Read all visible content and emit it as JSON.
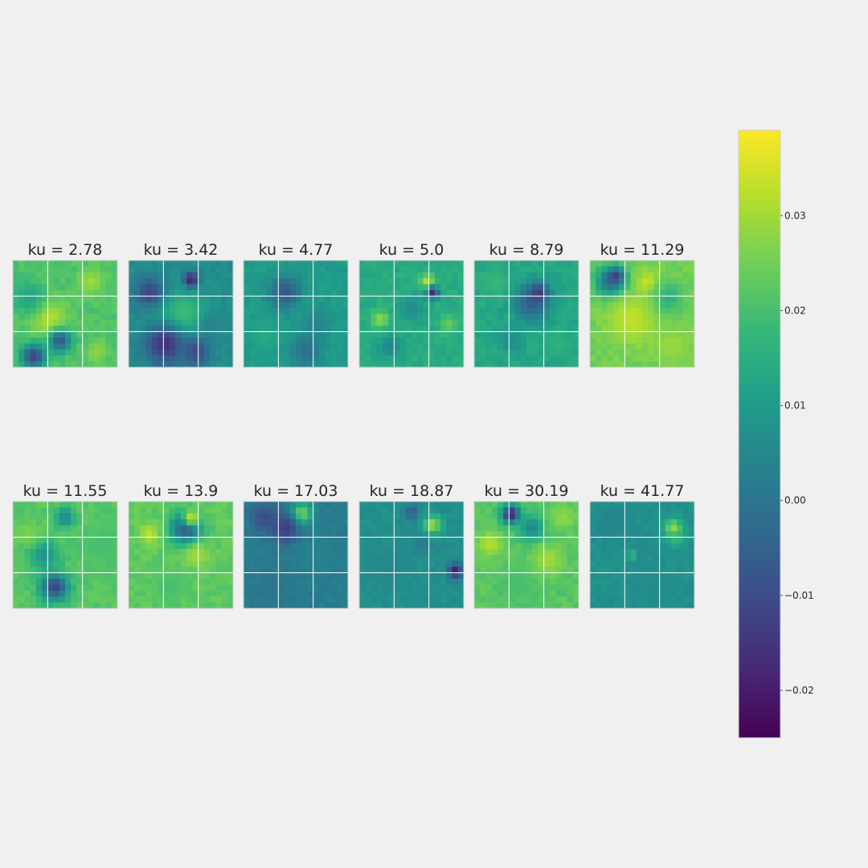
{
  "chart_data": {
    "type": "heatmap",
    "colormap": "viridis",
    "grid": true,
    "legend": "colorbar-right",
    "panels": [
      {
        "title": "ku = 2.78",
        "base": 0.021,
        "features": [
          [
            0.35,
            0.55,
            0.12,
            0.032
          ],
          [
            0.75,
            0.2,
            0.08,
            0.03
          ],
          [
            0.2,
            0.9,
            0.08,
            -0.012
          ],
          [
            0.45,
            0.75,
            0.07,
            -0.008
          ],
          [
            0.8,
            0.85,
            0.07,
            0.028
          ],
          [
            0.15,
            0.35,
            0.1,
            0.012
          ]
        ]
      },
      {
        "title": "ku = 3.42",
        "base": 0.006,
        "features": [
          [
            0.5,
            0.55,
            0.18,
            0.022
          ],
          [
            0.35,
            0.78,
            0.14,
            -0.016
          ],
          [
            0.2,
            0.3,
            0.1,
            -0.012
          ],
          [
            0.6,
            0.18,
            0.05,
            -0.02
          ],
          [
            0.8,
            0.6,
            0.1,
            0.004
          ],
          [
            0.65,
            0.85,
            0.1,
            -0.01
          ]
        ]
      },
      {
        "title": "ku = 4.77",
        "base": 0.01,
        "features": [
          [
            0.4,
            0.3,
            0.1,
            -0.008
          ],
          [
            0.7,
            0.6,
            0.1,
            0.004
          ],
          [
            0.6,
            0.85,
            0.1,
            -0.002
          ],
          [
            0.2,
            0.7,
            0.08,
            0.014
          ]
        ]
      },
      {
        "title": "ku = 5.0",
        "base": 0.014,
        "features": [
          [
            0.65,
            0.2,
            0.05,
            0.032
          ],
          [
            0.7,
            0.3,
            0.04,
            -0.018
          ],
          [
            0.2,
            0.55,
            0.06,
            0.028
          ],
          [
            0.3,
            0.8,
            0.07,
            0.004
          ],
          [
            0.85,
            0.6,
            0.06,
            0.024
          ],
          [
            0.5,
            0.45,
            0.08,
            0.006
          ]
        ]
      },
      {
        "title": "ku = 8.79",
        "base": 0.013,
        "features": [
          [
            0.55,
            0.4,
            0.12,
            -0.006
          ],
          [
            0.62,
            0.3,
            0.06,
            -0.014
          ],
          [
            0.35,
            0.75,
            0.08,
            0.006
          ],
          [
            0.8,
            0.8,
            0.07,
            0.016
          ],
          [
            0.2,
            0.2,
            0.08,
            0.018
          ]
        ]
      },
      {
        "title": "ku = 11.29",
        "base": 0.025,
        "features": [
          [
            0.2,
            0.2,
            0.1,
            -0.004
          ],
          [
            0.25,
            0.15,
            0.05,
            -0.014
          ],
          [
            0.4,
            0.55,
            0.16,
            0.033
          ],
          [
            0.55,
            0.2,
            0.07,
            0.034
          ],
          [
            0.75,
            0.35,
            0.1,
            0.016
          ],
          [
            0.8,
            0.8,
            0.12,
            0.029
          ]
        ]
      },
      {
        "title": "ku = 11.55",
        "base": 0.022,
        "features": [
          [
            0.4,
            0.8,
            0.09,
            -0.012
          ],
          [
            0.3,
            0.5,
            0.1,
            0.008
          ],
          [
            0.5,
            0.15,
            0.06,
            0.004
          ],
          [
            0.85,
            0.4,
            0.15,
            0.02
          ],
          [
            0.15,
            0.3,
            0.08,
            0.026
          ]
        ]
      },
      {
        "title": "ku = 13.9",
        "base": 0.023,
        "features": [
          [
            0.55,
            0.25,
            0.1,
            -0.01
          ],
          [
            0.6,
            0.15,
            0.06,
            0.033
          ],
          [
            0.2,
            0.3,
            0.06,
            0.033
          ],
          [
            0.65,
            0.5,
            0.08,
            0.03
          ],
          [
            0.4,
            0.8,
            0.12,
            0.02
          ]
        ]
      },
      {
        "title": "ku = 17.03",
        "base": 0.002,
        "features": [
          [
            0.55,
            0.12,
            0.07,
            0.03
          ],
          [
            0.4,
            0.25,
            0.1,
            -0.014
          ],
          [
            0.2,
            0.15,
            0.1,
            -0.01
          ],
          [
            0.7,
            0.5,
            0.12,
            0.004
          ],
          [
            0.3,
            0.8,
            0.15,
            0.0
          ]
        ]
      },
      {
        "title": "ku = 18.87",
        "base": 0.007,
        "features": [
          [
            0.7,
            0.22,
            0.06,
            0.03
          ],
          [
            0.6,
            0.4,
            0.07,
            0.002
          ],
          [
            0.92,
            0.65,
            0.05,
            -0.02
          ],
          [
            0.3,
            0.6,
            0.15,
            0.005
          ],
          [
            0.5,
            0.1,
            0.05,
            -0.006
          ]
        ]
      },
      {
        "title": "ku = 30.19",
        "base": 0.022,
        "features": [
          [
            0.35,
            0.12,
            0.06,
            -0.02
          ],
          [
            0.55,
            0.25,
            0.08,
            0.005
          ],
          [
            0.15,
            0.4,
            0.08,
            0.032
          ],
          [
            0.7,
            0.55,
            0.1,
            0.03
          ],
          [
            0.85,
            0.15,
            0.08,
            0.028
          ],
          [
            0.4,
            0.75,
            0.12,
            0.02
          ]
        ]
      },
      {
        "title": "ku = 41.77",
        "base": 0.007,
        "features": [
          [
            0.8,
            0.25,
            0.06,
            0.03
          ],
          [
            0.82,
            0.35,
            0.05,
            0.018
          ],
          [
            0.4,
            0.5,
            0.03,
            0.02
          ],
          [
            0.2,
            0.2,
            0.12,
            0.004
          ],
          [
            0.6,
            0.8,
            0.15,
            0.006
          ]
        ]
      }
    ],
    "colorbar": {
      "vmin": -0.025,
      "vmax": 0.039,
      "ticks": [
        {
          "value": 0.03,
          "label": "0.03"
        },
        {
          "value": 0.02,
          "label": "0.02"
        },
        {
          "value": 0.01,
          "label": "0.01"
        },
        {
          "value": 0.0,
          "label": "0.00"
        },
        {
          "value": -0.01,
          "label": "−0.01"
        },
        {
          "value": -0.02,
          "label": "−0.02"
        }
      ]
    }
  }
}
